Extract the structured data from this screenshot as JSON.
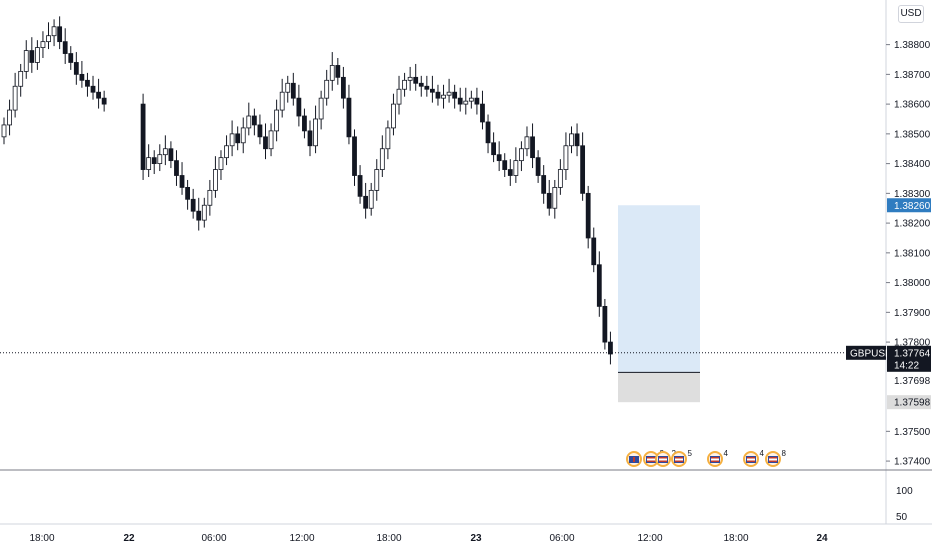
{
  "symbol": "GBPUSD",
  "currency": "USD",
  "countdown": "14:22",
  "colors": {
    "up": "#131722",
    "down": "#131722",
    "profit_zone": "#dbe9f7",
    "loss_zone": "#dedede",
    "target_tag": "#2f7cc0",
    "price_tag": "#131722",
    "stop_tag": "#dcdcdc"
  },
  "chart_data": {
    "type": "candlestick",
    "x_ticks": [
      "18:00",
      "22",
      "06:00",
      "12:00",
      "18:00",
      "23",
      "06:00",
      "12:00",
      "18:00",
      "24"
    ],
    "y_ticks": [
      "1.38800",
      "1.38700",
      "1.38600",
      "1.38500",
      "1.38400",
      "1.38300",
      "1.38200",
      "1.38100",
      "1.38000",
      "1.37900",
      "1.37800",
      "1.37500",
      "1.37400"
    ],
    "ylim": [
      1.3737,
      1.3895
    ],
    "price_tags": {
      "target": "1.38260",
      "current": "1.37764",
      "entry": "1.37698",
      "stop": "1.37598"
    },
    "position": {
      "entry": 1.37698,
      "target": 1.3826,
      "stop": 1.37598
    },
    "last_price": 1.37764,
    "oscillator_ticks": [
      "100",
      "50"
    ],
    "close_series": [
      1.3853,
      1.3858,
      1.3866,
      1.3871,
      1.3878,
      1.3874,
      1.3879,
      1.3881,
      1.3883,
      1.3886,
      1.3881,
      1.3877,
      1.3874,
      1.387,
      1.3868,
      1.3866,
      1.3864,
      1.3862,
      1.386,
      1.3838,
      1.3842,
      1.384,
      1.3843,
      1.3845,
      1.3841,
      1.3836,
      1.3832,
      1.3828,
      1.3824,
      1.3821,
      1.3826,
      1.3831,
      1.3838,
      1.3842,
      1.3846,
      1.385,
      1.3847,
      1.3852,
      1.3856,
      1.3853,
      1.3849,
      1.3845,
      1.3851,
      1.3858,
      1.3864,
      1.3867,
      1.3862,
      1.3856,
      1.3851,
      1.3846,
      1.3855,
      1.3862,
      1.3868,
      1.3873,
      1.3869,
      1.3862,
      1.3849,
      1.3836,
      1.3829,
      1.3825,
      1.3831,
      1.3838,
      1.3845,
      1.3852,
      1.386,
      1.3865,
      1.3868,
      1.3869,
      1.3867,
      1.3866,
      1.3865,
      1.3864,
      1.3862,
      1.3863,
      1.3864,
      1.3862,
      1.386,
      1.3861,
      1.3862,
      1.386,
      1.3854,
      1.3847,
      1.3843,
      1.3841,
      1.3838,
      1.3836,
      1.3841,
      1.3845,
      1.3849,
      1.3842,
      1.3836,
      1.383,
      1.3825,
      1.3832,
      1.3838,
      1.3846,
      1.385,
      1.3846,
      1.383,
      1.3815,
      1.3806,
      1.3792,
      1.378,
      1.3776
    ],
    "events": [
      {
        "flag": "gb",
        "count": ""
      },
      {
        "flag": "us",
        "count": "2"
      },
      {
        "flag": "us",
        "count": "2"
      },
      {
        "flag": "us",
        "count": "5"
      },
      {
        "flag": "us",
        "count": "4"
      },
      {
        "flag": "us",
        "count": "4"
      },
      {
        "flag": "us",
        "count": "8"
      }
    ]
  }
}
